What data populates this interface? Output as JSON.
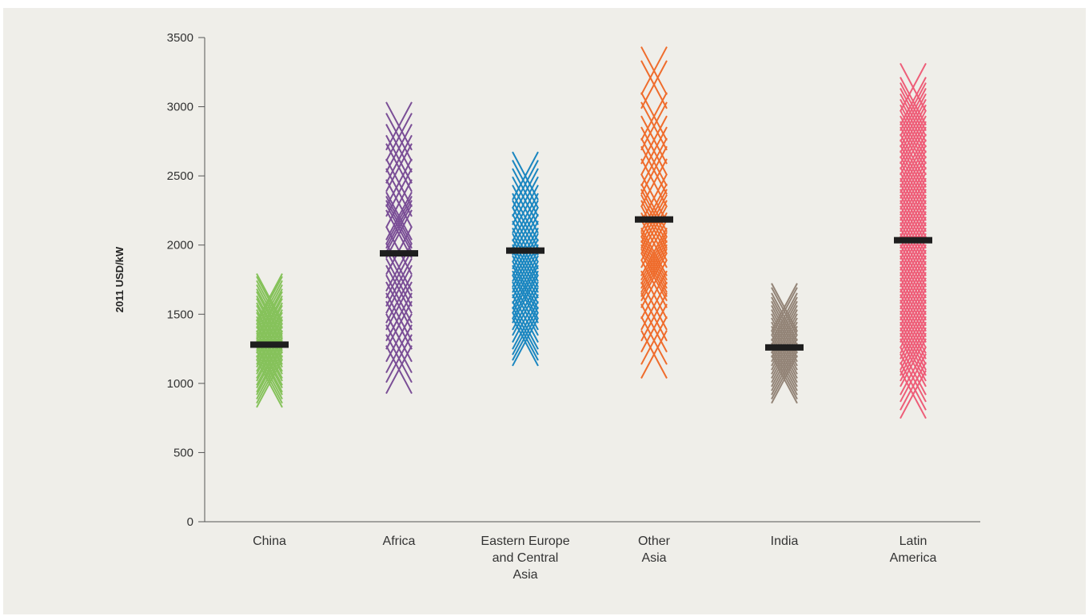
{
  "chart_data": {
    "type": "scatter",
    "title": "",
    "xlabel": "",
    "ylabel": "2011 USD/kW",
    "ylim": [
      0,
      3500
    ],
    "yticks": [
      0,
      500,
      1000,
      1500,
      2000,
      2500,
      3000,
      3500
    ],
    "grid": false,
    "legend": "none",
    "marker": "x",
    "categories": [
      [
        "China"
      ],
      [
        "Africa"
      ],
      [
        "Eastern Europe",
        "and Central",
        "Asia"
      ],
      [
        "Other",
        "Asia"
      ],
      [
        "India"
      ],
      [
        "Latin",
        "America"
      ]
    ],
    "series": [
      {
        "color": "#86c25b",
        "mean": 1280,
        "points": [
          1000,
          1030,
          1060,
          1090,
          1110,
          1140,
          1160,
          1190,
          1210,
          1240,
          1260,
          1290,
          1310,
          1340,
          1360,
          1390,
          1410,
          1440,
          1460,
          1490,
          1510,
          1540,
          1570,
          1600,
          1620
        ]
      },
      {
        "color": "#7a4e96",
        "mean": 1940,
        "points": [
          1100,
          1180,
          1250,
          1330,
          1420,
          1480,
          1560,
          1610,
          1680,
          1730,
          1790,
          1840,
          1960,
          2080,
          2120,
          2150,
          2180,
          2210,
          2300,
          2380,
          2450,
          2560,
          2620,
          2700,
          2780,
          2860
        ]
      },
      {
        "color": "#1a86c0",
        "mean": 1960,
        "points": [
          1300,
          1340,
          1380,
          1420,
          1470,
          1520,
          1560,
          1610,
          1640,
          1680,
          1710,
          1750,
          1790,
          1830,
          1870,
          1910,
          1950,
          2000,
          2050,
          2100,
          2150,
          2200,
          2260,
          2320,
          2380,
          2440,
          2500
        ]
      },
      {
        "color": "#ef6c2c",
        "mean": 2185,
        "points": [
          1210,
          1310,
          1400,
          1480,
          1560,
          1640,
          1720,
          1770,
          1800,
          1830,
          1860,
          1890,
          1920,
          1950,
          2010,
          2060,
          2110,
          2150,
          2190,
          2230,
          2270,
          2340,
          2450,
          2540,
          2600,
          2680,
          2760,
          2860,
          2930,
          3160,
          3260
        ]
      },
      {
        "color": "#938477",
        "mean": 1260,
        "points": [
          1030,
          1060,
          1090,
          1120,
          1150,
          1180,
          1210,
          1240,
          1270,
          1300,
          1330,
          1360,
          1390,
          1420,
          1450,
          1480,
          1520,
          1550
        ]
      },
      {
        "color": "#ee5d78",
        "mean": 2035,
        "points": [
          920,
          980,
          1040,
          1090,
          1150,
          1190,
          1230,
          1270,
          1310,
          1350,
          1390,
          1430,
          1470,
          1510,
          1550,
          1590,
          1630,
          1670,
          1710,
          1750,
          1790,
          1830,
          1870,
          1910,
          1950,
          1990,
          2030,
          2070,
          2110,
          2150,
          2190,
          2230,
          2270,
          2310,
          2350,
          2390,
          2430,
          2470,
          2510,
          2550,
          2590,
          2630,
          2680,
          2720,
          2760,
          2800,
          2840,
          2880,
          2920,
          2960,
          3000,
          3040,
          3140
        ]
      }
    ]
  }
}
